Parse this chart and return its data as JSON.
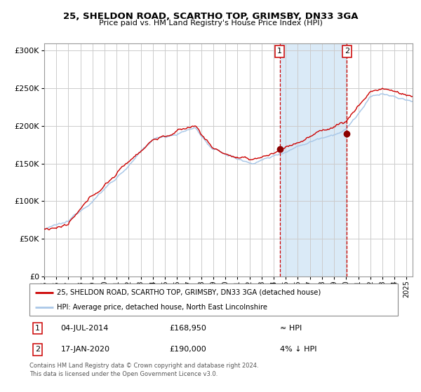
{
  "title": "25, SHELDON ROAD, SCARTHO TOP, GRIMSBY, DN33 3GA",
  "subtitle": "Price paid vs. HM Land Registry's House Price Index (HPI)",
  "legend_line1": "25, SHELDON ROAD, SCARTHO TOP, GRIMSBY, DN33 3GA (detached house)",
  "legend_line2": "HPI: Average price, detached house, North East Lincolnshire",
  "sale1_date": "04-JUL-2014",
  "sale1_price": "£168,950",
  "sale1_rel": "≈ HPI",
  "sale2_date": "17-JAN-2020",
  "sale2_price": "£190,000",
  "sale2_rel": "4% ↓ HPI",
  "footer": "Contains HM Land Registry data © Crown copyright and database right 2024.\nThis data is licensed under the Open Government Licence v3.0.",
  "hpi_color": "#aac8e8",
  "price_color": "#cc0000",
  "dot_color": "#8b0000",
  "grid_color": "#cccccc",
  "shade_color": "#daeaf7",
  "vline_color": "#cc0000",
  "ylim": [
    0,
    310000
  ],
  "yticks": [
    0,
    50000,
    100000,
    150000,
    200000,
    250000,
    300000
  ],
  "sale1_x": 2014.5,
  "sale2_x": 2020.05,
  "sale1_y": 168950,
  "sale2_y": 190000,
  "xmin": 1995,
  "xmax": 2025.5
}
